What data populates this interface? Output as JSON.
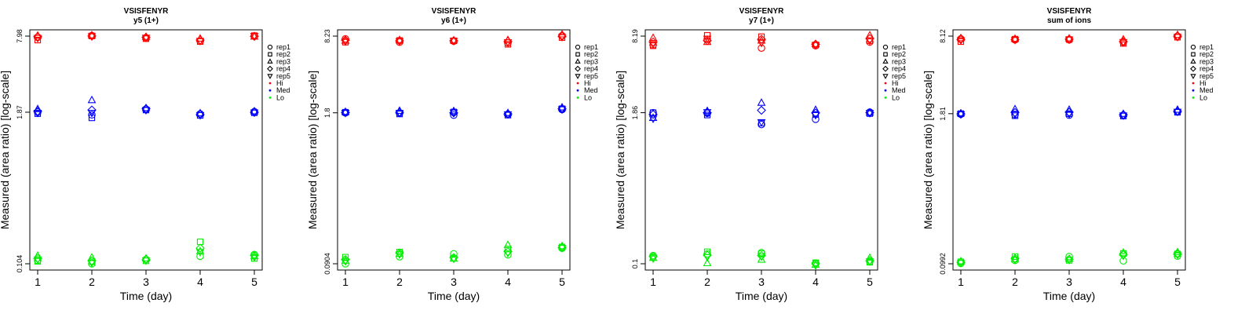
{
  "chart_data": [
    {
      "type": "scatter",
      "title": "VSISFENYR",
      "subtitle": "y5 (1+)",
      "xlabel": "Time (day)",
      "ylabel": "Measured (area ratio) [log-scale]",
      "y_scale": "log",
      "ylim": [
        0.104,
        7.98
      ],
      "y_ticks": [
        "0.104",
        "1.87",
        "7.98"
      ],
      "x_ticks": [
        1,
        2,
        3,
        4,
        5
      ],
      "grid": false,
      "legend": {
        "position": "right",
        "entries": [
          {
            "label": "rep1",
            "shape": "circle"
          },
          {
            "label": "rep2",
            "shape": "square"
          },
          {
            "label": "rep3",
            "shape": "triangle-up"
          },
          {
            "label": "rep4",
            "shape": "diamond"
          },
          {
            "label": "rep5",
            "shape": "triangle-down"
          },
          {
            "label": "Hi",
            "color": "#ff0000"
          },
          {
            "label": "Med",
            "color": "#0000ff"
          },
          {
            "label": "Lo",
            "color": "#00ee00"
          }
        ]
      },
      "series": [
        {
          "level": "Hi",
          "color": "#ff0000",
          "reps": [
            [
              7.8,
              8.05,
              7.7,
              7.25,
              8.0
            ],
            [
              7.4,
              8.0,
              7.6,
              7.2,
              8.05
            ],
            [
              8.05,
              8.1,
              7.85,
              7.6,
              7.9
            ],
            [
              7.9,
              8.0,
              7.8,
              7.4,
              7.95
            ],
            [
              7.7,
              7.95,
              7.75,
              7.3,
              8.0
            ]
          ]
        },
        {
          "level": "Med",
          "color": "#0000ff",
          "reps": [
            [
              1.87,
              1.78,
              1.98,
              1.81,
              1.89
            ],
            [
              1.82,
              1.68,
              1.95,
              1.76,
              1.85
            ],
            [
              1.98,
              2.35,
              2.02,
              1.83,
              1.9
            ],
            [
              1.9,
              1.95,
              2.0,
              1.79,
              1.87
            ],
            [
              1.85,
              1.85,
              1.95,
              1.77,
              1.86
            ]
          ]
        },
        {
          "level": "Lo",
          "color": "#00ee00",
          "reps": [
            [
              0.111,
              0.104,
              0.113,
              0.12,
              0.124
            ],
            [
              0.109,
              0.108,
              0.11,
              0.158,
              0.115
            ],
            [
              0.121,
              0.117,
              0.115,
              0.132,
              0.12
            ],
            [
              0.115,
              0.11,
              0.112,
              0.14,
              0.122
            ],
            [
              0.113,
              0.106,
              0.111,
              0.13,
              0.118
            ]
          ]
        }
      ]
    },
    {
      "type": "scatter",
      "title": "VSISFENYR",
      "subtitle": "y6 (1+)",
      "xlabel": "Time (day)",
      "ylabel": "Measured (area ratio) [log-scale]",
      "y_scale": "log",
      "ylim": [
        0.0904,
        8.23
      ],
      "y_ticks": [
        "0.0904",
        "1.8",
        "8.23"
      ],
      "x_ticks": [
        1,
        2,
        3,
        4,
        5
      ],
      "grid": false,
      "legend": {
        "position": "right",
        "entries": [
          {
            "label": "rep1",
            "shape": "circle"
          },
          {
            "label": "rep2",
            "shape": "square"
          },
          {
            "label": "rep3",
            "shape": "triangle-up"
          },
          {
            "label": "rep4",
            "shape": "diamond"
          },
          {
            "label": "rep5",
            "shape": "triangle-down"
          },
          {
            "label": "Hi",
            "color": "#ff0000"
          },
          {
            "label": "Med",
            "color": "#0000ff"
          },
          {
            "label": "Lo",
            "color": "#00ee00"
          }
        ]
      },
      "series": [
        {
          "level": "Hi",
          "color": "#ff0000",
          "reps": [
            [
              7.8,
              7.3,
              7.45,
              7.2,
              8.3
            ],
            [
              7.3,
              7.55,
              7.5,
              7.0,
              8.0
            ],
            [
              7.5,
              7.6,
              7.55,
              7.6,
              8.5
            ],
            [
              7.6,
              7.5,
              7.5,
              7.4,
              8.2
            ],
            [
              7.4,
              7.45,
              7.5,
              7.3,
              8.1
            ]
          ]
        },
        {
          "level": "Med",
          "color": "#0000ff",
          "reps": [
            [
              1.8,
              1.79,
              1.72,
              1.75,
              1.92
            ],
            [
              1.82,
              1.76,
              1.83,
              1.72,
              1.95
            ],
            [
              1.83,
              1.87,
              1.86,
              1.79,
              2.0
            ],
            [
              1.81,
              1.82,
              1.8,
              1.76,
              1.95
            ],
            [
              1.8,
              1.8,
              1.81,
              1.75,
              1.93
            ]
          ]
        },
        {
          "level": "Lo",
          "color": "#00ee00",
          "reps": [
            [
              0.0904,
              0.104,
              0.11,
              0.108,
              0.123
            ],
            [
              0.103,
              0.114,
              0.101,
              0.121,
              0.126
            ],
            [
              0.096,
              0.11,
              0.1,
              0.131,
              0.128
            ],
            [
              0.098,
              0.112,
              0.102,
              0.115,
              0.125
            ],
            [
              0.095,
              0.109,
              0.1,
              0.112,
              0.124
            ]
          ]
        }
      ]
    },
    {
      "type": "scatter",
      "title": "VSISFENYR",
      "subtitle": "y7 (1+)",
      "xlabel": "Time (day)",
      "ylabel": "Measured (area ratio) [log-scale]",
      "y_scale": "log",
      "ylim": [
        0.1,
        8.19
      ],
      "y_ticks": [
        "0.1",
        "1.86",
        "8.19"
      ],
      "x_ticks": [
        1,
        2,
        3,
        4,
        5
      ],
      "grid": false,
      "legend": {
        "position": "right",
        "entries": [
          {
            "label": "rep1",
            "shape": "circle"
          },
          {
            "label": "rep2",
            "shape": "square"
          },
          {
            "label": "rep3",
            "shape": "triangle-up"
          },
          {
            "label": "rep4",
            "shape": "diamond"
          },
          {
            "label": "rep5",
            "shape": "triangle-down"
          },
          {
            "label": "Hi",
            "color": "#ff0000"
          },
          {
            "label": "Med",
            "color": "#0000ff"
          },
          {
            "label": "Lo",
            "color": "#00ee00"
          }
        ]
      },
      "series": [
        {
          "level": "Hi",
          "color": "#ff0000",
          "reps": [
            [
              6.9,
              7.7,
              6.5,
              6.8,
              7.3
            ],
            [
              6.8,
              8.3,
              8.1,
              6.9,
              7.5
            ],
            [
              7.9,
              7.3,
              7.5,
              7.0,
              8.3
            ],
            [
              7.3,
              7.5,
              7.7,
              7.0,
              7.8
            ],
            [
              7.0,
              7.8,
              7.2,
              6.9,
              7.5
            ]
          ]
        },
        {
          "level": "Med",
          "color": "#0000ff",
          "reps": [
            [
              1.86,
              1.84,
              1.48,
              1.64,
              1.88
            ],
            [
              1.86,
              1.78,
              1.52,
              1.8,
              1.83
            ],
            [
              1.68,
              1.92,
              2.25,
              1.96,
              1.86
            ],
            [
              1.8,
              1.86,
              1.95,
              1.85,
              1.86
            ],
            [
              1.66,
              1.88,
              1.55,
              1.78,
              1.85
            ]
          ]
        },
        {
          "level": "Lo",
          "color": "#00ee00",
          "reps": [
            [
              0.117,
              0.121,
              0.124,
              0.101,
              0.104
            ],
            [
              0.113,
              0.126,
              0.122,
              0.102,
              0.103
            ],
            [
              0.112,
              0.101,
              0.108,
              0.098,
              0.112
            ],
            [
              0.115,
              0.118,
              0.117,
              0.1,
              0.106
            ],
            [
              0.111,
              0.114,
              0.115,
              0.097,
              0.105
            ]
          ]
        }
      ]
    },
    {
      "type": "scatter",
      "title": "VSISFENYR",
      "subtitle": "sum of ions",
      "xlabel": "Time (day)",
      "ylabel": "Measured (area ratio) [log-scale]",
      "y_scale": "log",
      "ylim": [
        0.0992,
        8.12
      ],
      "y_ticks": [
        "0.0992",
        "1.81",
        "8.12"
      ],
      "x_ticks": [
        1,
        2,
        3,
        4,
        5
      ],
      "grid": false,
      "legend": {
        "position": "right",
        "entries": [
          {
            "label": "rep1",
            "shape": "circle"
          },
          {
            "label": "rep2",
            "shape": "square"
          },
          {
            "label": "rep3",
            "shape": "triangle-up"
          },
          {
            "label": "rep4",
            "shape": "diamond"
          },
          {
            "label": "rep5",
            "shape": "triangle-down"
          },
          {
            "label": "Hi",
            "color": "#ff0000"
          },
          {
            "label": "Med",
            "color": "#0000ff"
          },
          {
            "label": "Lo",
            "color": "#00ee00"
          }
        ]
      },
      "series": [
        {
          "level": "Hi",
          "color": "#ff0000",
          "reps": [
            [
              7.7,
              7.55,
              7.55,
              7.2,
              8.1
            ],
            [
              7.3,
              7.65,
              7.6,
              7.05,
              7.95
            ],
            [
              7.8,
              7.7,
              7.75,
              7.6,
              8.3
            ],
            [
              7.6,
              7.6,
              7.65,
              7.3,
              8.1
            ],
            [
              7.5,
              7.55,
              7.6,
              7.25,
              8.0
            ]
          ]
        },
        {
          "level": "Med",
          "color": "#0000ff",
          "reps": [
            [
              1.79,
              1.78,
              1.76,
              1.76,
              1.88
            ],
            [
              1.81,
              1.74,
              1.81,
              1.73,
              1.86
            ],
            [
              1.82,
              1.97,
              1.95,
              1.8,
              1.95
            ],
            [
              1.8,
              1.85,
              1.86,
              1.77,
              1.9
            ],
            [
              1.79,
              1.8,
              1.8,
              1.75,
              1.88
            ]
          ]
        },
        {
          "level": "Lo",
          "color": "#00ee00",
          "reps": [
            [
              0.1,
              0.106,
              0.114,
              0.105,
              0.115
            ],
            [
              0.103,
              0.114,
              0.106,
              0.121,
              0.12
            ],
            [
              0.104,
              0.108,
              0.109,
              0.123,
              0.124
            ],
            [
              0.102,
              0.11,
              0.108,
              0.118,
              0.12
            ],
            [
              0.101,
              0.107,
              0.107,
              0.116,
              0.118
            ]
          ]
        }
      ]
    }
  ]
}
